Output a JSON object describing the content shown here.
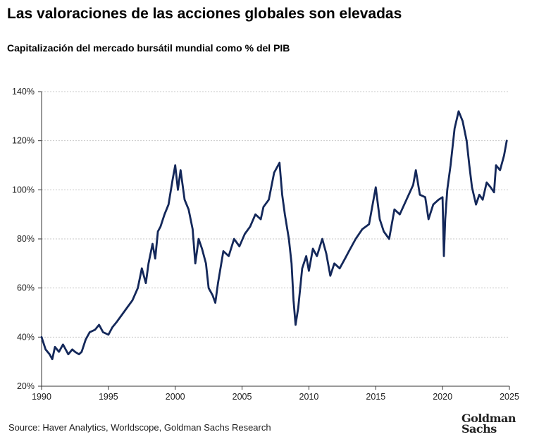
{
  "title": "Las valoraciones de las acciones globales son elevadas",
  "subtitle": "Capitalización del mercado bursátil mundial como % del PIB",
  "source": "Source: Haver Analytics, Worldscope, Goldman Sachs Research",
  "logo": {
    "line1": "Goldman",
    "line2": "Sachs"
  },
  "colors": {
    "line": "#14285a",
    "grid": "#c8c8c8",
    "axis": "#333333"
  },
  "chart_data": {
    "type": "line",
    "title": "Capitalización del mercado bursátil mundial como % del PIB",
    "xlabel": "",
    "ylabel": "",
    "xlim": [
      1990,
      2025
    ],
    "ylim": [
      20,
      140
    ],
    "grid": true,
    "x_ticks": [
      1990,
      1995,
      2000,
      2005,
      2010,
      2015,
      2020,
      2025
    ],
    "y_ticks": [
      20,
      40,
      60,
      80,
      100,
      120,
      140
    ],
    "y_tick_labels": [
      "20%",
      "40%",
      "60%",
      "80%",
      "100%",
      "120%",
      "140%"
    ],
    "series": [
      {
        "name": "Capitalización del mercado bursátil mundial / PIB",
        "x": [
          1990.0,
          1990.3,
          1990.6,
          1990.8,
          1991.0,
          1991.3,
          1991.6,
          1992.0,
          1992.3,
          1992.5,
          1992.8,
          1993.0,
          1993.3,
          1993.6,
          1994.0,
          1994.3,
          1994.6,
          1995.0,
          1995.3,
          1995.6,
          1996.0,
          1996.4,
          1996.8,
          1997.2,
          1997.5,
          1997.8,
          1998.0,
          1998.3,
          1998.5,
          1998.7,
          1998.9,
          1999.2,
          1999.5,
          1999.8,
          2000.0,
          2000.2,
          2000.4,
          2000.7,
          2001.0,
          2001.3,
          2001.5,
          2001.75,
          2002.0,
          2002.3,
          2002.5,
          2002.8,
          2003.0,
          2003.2,
          2003.6,
          2004.0,
          2004.4,
          2004.8,
          2005.2,
          2005.6,
          2006.0,
          2006.4,
          2006.6,
          2007.0,
          2007.4,
          2007.8,
          2008.0,
          2008.2,
          2008.5,
          2008.7,
          2008.85,
          2009.0,
          2009.2,
          2009.5,
          2009.8,
          2010.0,
          2010.3,
          2010.6,
          2011.0,
          2011.3,
          2011.6,
          2011.9,
          2012.3,
          2012.7,
          2013.0,
          2013.5,
          2014.0,
          2014.5,
          2015.0,
          2015.3,
          2015.6,
          2016.0,
          2016.4,
          2016.8,
          2017.3,
          2017.8,
          2018.0,
          2018.3,
          2018.7,
          2018.95,
          2019.3,
          2019.7,
          2020.0,
          2020.1,
          2020.2,
          2020.35,
          2020.6,
          2020.9,
          2021.2,
          2021.5,
          2021.8,
          2022.0,
          2022.2,
          2022.5,
          2022.75,
          2023.0,
          2023.3,
          2023.6,
          2023.85,
          2024.0,
          2024.3,
          2024.6,
          2024.8
        ],
        "values": [
          40,
          35,
          33,
          31,
          36,
          34,
          37,
          33,
          35,
          34,
          33,
          34,
          39,
          42,
          43,
          45,
          42,
          41,
          44,
          46,
          49,
          52,
          55,
          60,
          68,
          62,
          70,
          78,
          72,
          83,
          85,
          90,
          94,
          104,
          110,
          100,
          108,
          96,
          92,
          84,
          70,
          80,
          76,
          70,
          60,
          57,
          54,
          62,
          75,
          73,
          80,
          77,
          82,
          85,
          90,
          88,
          93,
          96,
          107,
          111,
          98,
          90,
          80,
          70,
          55,
          45,
          52,
          68,
          73,
          67,
          76,
          73,
          80,
          74,
          65,
          70,
          68,
          72,
          75,
          80,
          84,
          86,
          101,
          88,
          83,
          80,
          92,
          90,
          96,
          102,
          108,
          98,
          97,
          88,
          94,
          96,
          97,
          73,
          88,
          100,
          110,
          125,
          132,
          128,
          120,
          110,
          101,
          94,
          98,
          96,
          103,
          101,
          99,
          110,
          108,
          114,
          120
        ]
      }
    ]
  }
}
